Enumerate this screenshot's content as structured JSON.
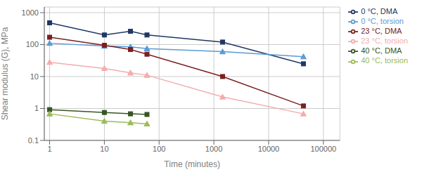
{
  "chart_data": {
    "type": "line",
    "x_label": "Time (minutes)",
    "y_label": "Shear modulus (G), MPa",
    "log": true,
    "grid": true,
    "legend": "right",
    "xlim": [
      0.8,
      200000
    ],
    "ylim": [
      0.1,
      1500
    ],
    "xticks": [
      1,
      10,
      100,
      1000,
      10000,
      100000
    ],
    "yticks": [
      0.1,
      1,
      10,
      100,
      1000
    ],
    "series": [
      {
        "name": "0 °C, DMA",
        "color": "#1F3864",
        "marker": "square",
        "line_style": "solid",
        "x": [
          1,
          10,
          30,
          60,
          1440,
          43200
        ],
        "values": [
          480,
          200,
          260,
          200,
          120,
          25
        ]
      },
      {
        "name": "0 °C, torsion",
        "color": "#5B9BD5",
        "marker": "triangle",
        "line_style": "solid",
        "x": [
          1,
          10,
          30,
          60,
          1440,
          43200
        ],
        "values": [
          110,
          90,
          85,
          75,
          60,
          42
        ]
      },
      {
        "name": "23 °C, DMA",
        "color": "#7B2020",
        "marker": "square",
        "line_style": "solid",
        "x": [
          1,
          10,
          30,
          60,
          1440,
          43200
        ],
        "values": [
          170,
          95,
          70,
          50,
          10,
          1.2
        ]
      },
      {
        "name": "23 °C, torsion",
        "color": "#F4ACAC",
        "marker": "triangle",
        "line_style": "solid",
        "x": [
          1,
          10,
          30,
          60,
          1440,
          43200
        ],
        "values": [
          28,
          18,
          13,
          11,
          2.3,
          0.68
        ]
      },
      {
        "name": "40 °C, DMA",
        "color": "#375623",
        "marker": "square",
        "line_style": "solid",
        "x": [
          1,
          10,
          30,
          60
        ],
        "values": [
          0.92,
          0.75,
          0.68,
          0.65
        ]
      },
      {
        "name": "40 °C, torsion",
        "color": "#9BBB59",
        "marker": "triangle",
        "line_style": "solid",
        "x": [
          1,
          10,
          30,
          60
        ],
        "values": [
          0.68,
          0.4,
          0.36,
          0.33
        ]
      }
    ]
  }
}
